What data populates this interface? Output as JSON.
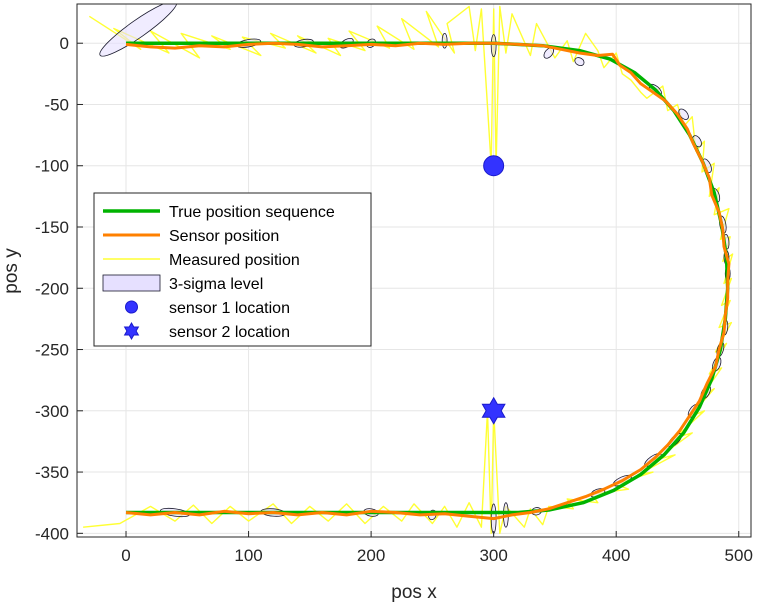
{
  "chart_data": {
    "type": "scatter",
    "xlabel": "pos x",
    "ylabel": "pos y",
    "xlim": [
      -40,
      510
    ],
    "ylim": [
      -403,
      32
    ],
    "grid": true,
    "legend_position": "left-middle",
    "x_ticks": [
      0,
      100,
      200,
      300,
      400,
      500
    ],
    "x_tick_labels": [
      "0",
      "100",
      "200",
      "300",
      "400",
      "500"
    ],
    "y_ticks": [
      0,
      -50,
      -100,
      -150,
      -200,
      -250,
      -300,
      -350,
      -400
    ],
    "y_tick_labels": [
      "0",
      "-50",
      "-100",
      "-150",
      "-200",
      "-250",
      "-300",
      "-350",
      "-400"
    ],
    "colors": {
      "true_position": "#00b300",
      "sensor_position": "#ff8000",
      "measured_position": "#ffff33",
      "sigma_fill": "#e6e0ff",
      "sigma_edge": "#1a1a2e",
      "sensor_marker": "#3333ff",
      "grid": "#e6e6e6",
      "axes": "#262626"
    },
    "series": [
      {
        "name": "True position sequence",
        "kind": "line",
        "points": [
          [
            0,
            0
          ],
          [
            100,
            0
          ],
          [
            200,
            0
          ],
          [
            300,
            0
          ],
          [
            340,
            -2
          ],
          [
            370,
            -6
          ],
          [
            395,
            -13
          ],
          [
            415,
            -24
          ],
          [
            432,
            -38
          ],
          [
            447,
            -55
          ],
          [
            460,
            -75
          ],
          [
            471,
            -98
          ],
          [
            480,
            -122
          ],
          [
            486,
            -148
          ],
          [
            490,
            -175
          ],
          [
            491,
            -200
          ],
          [
            489,
            -225
          ],
          [
            485,
            -250
          ],
          [
            478,
            -274
          ],
          [
            468,
            -297
          ],
          [
            455,
            -318
          ],
          [
            439,
            -336
          ],
          [
            420,
            -352
          ],
          [
            398,
            -365
          ],
          [
            373,
            -375
          ],
          [
            345,
            -381
          ],
          [
            320,
            -383
          ],
          [
            300,
            -383
          ],
          [
            200,
            -383
          ],
          [
            100,
            -383
          ],
          [
            0,
            -383
          ]
        ]
      },
      {
        "name": "Sensor position",
        "kind": "line",
        "points": [
          [
            0,
            -1
          ],
          [
            20,
            -3
          ],
          [
            40,
            -4
          ],
          [
            60,
            -2
          ],
          [
            80,
            -3
          ],
          [
            100,
            -1
          ],
          [
            120,
            0
          ],
          [
            140,
            -1
          ],
          [
            160,
            -3
          ],
          [
            180,
            -2
          ],
          [
            200,
            -1
          ],
          [
            220,
            -2
          ],
          [
            240,
            0
          ],
          [
            260,
            -1
          ],
          [
            280,
            0
          ],
          [
            300,
            0
          ],
          [
            320,
            -1
          ],
          [
            340,
            -2
          ],
          [
            355,
            -5
          ],
          [
            370,
            -8
          ],
          [
            385,
            -10
          ],
          [
            397,
            -9
          ],
          [
            403,
            -18
          ],
          [
            412,
            -24
          ],
          [
            420,
            -33
          ],
          [
            430,
            -40
          ],
          [
            440,
            -47
          ],
          [
            450,
            -58
          ],
          [
            458,
            -70
          ],
          [
            463,
            -82
          ],
          [
            470,
            -96
          ],
          [
            476,
            -110
          ],
          [
            478,
            -124
          ],
          [
            484,
            -138
          ],
          [
            487,
            -152
          ],
          [
            488,
            -166
          ],
          [
            492,
            -180
          ],
          [
            491,
            -194
          ],
          [
            491,
            -208
          ],
          [
            489,
            -222
          ],
          [
            488,
            -236
          ],
          [
            484,
            -250
          ],
          [
            481,
            -264
          ],
          [
            474,
            -278
          ],
          [
            468,
            -292
          ],
          [
            460,
            -304
          ],
          [
            452,
            -316
          ],
          [
            442,
            -328
          ],
          [
            432,
            -338
          ],
          [
            420,
            -348
          ],
          [
            405,
            -357
          ],
          [
            390,
            -364
          ],
          [
            375,
            -370
          ],
          [
            360,
            -375
          ],
          [
            345,
            -380
          ],
          [
            330,
            -383
          ],
          [
            315,
            -385
          ],
          [
            300,
            -388
          ],
          [
            280,
            -386
          ],
          [
            260,
            -384
          ],
          [
            240,
            -385
          ],
          [
            220,
            -383
          ],
          [
            200,
            -382
          ],
          [
            180,
            -385
          ],
          [
            160,
            -383
          ],
          [
            140,
            -385
          ],
          [
            120,
            -383
          ],
          [
            100,
            -384
          ],
          [
            80,
            -382
          ],
          [
            60,
            -385
          ],
          [
            40,
            -383
          ],
          [
            20,
            -385
          ],
          [
            0,
            -383
          ]
        ]
      },
      {
        "name": "Measured position",
        "kind": "line"
      },
      {
        "name": "3-sigma level",
        "kind": "ellipses",
        "ellipses": [
          {
            "cx": 10,
            "cy": 12,
            "rx": 38,
            "ry": 7,
            "angle": -35
          },
          {
            "cx": 100,
            "cy": 0,
            "rx": 10,
            "ry": 3,
            "angle": -10
          },
          {
            "cx": 145,
            "cy": 0,
            "rx": 8,
            "ry": 3,
            "angle": -10
          },
          {
            "cx": 180,
            "cy": 0,
            "rx": 6,
            "ry": 3,
            "angle": -30
          },
          {
            "cx": 200,
            "cy": 0,
            "rx": 4,
            "ry": 3,
            "angle": -40
          },
          {
            "cx": 260,
            "cy": 2,
            "rx": 2,
            "ry": 6,
            "angle": 0
          },
          {
            "cx": 300,
            "cy": -2,
            "rx": 2,
            "ry": 9,
            "angle": 0
          },
          {
            "cx": 345,
            "cy": -8,
            "rx": 3,
            "ry": 5,
            "angle": 40
          },
          {
            "cx": 370,
            "cy": -15,
            "rx": 4,
            "ry": 3,
            "angle": 30
          },
          {
            "cx": 432,
            "cy": -38,
            "rx": 6,
            "ry": 3,
            "angle": 40
          },
          {
            "cx": 455,
            "cy": -58,
            "rx": 5,
            "ry": 3,
            "angle": 50
          },
          {
            "cx": 466,
            "cy": -80,
            "rx": 5,
            "ry": 3,
            "angle": 60
          },
          {
            "cx": 474,
            "cy": -100,
            "rx": 6,
            "ry": 3,
            "angle": 65
          },
          {
            "cx": 481,
            "cy": -124,
            "rx": 6,
            "ry": 3,
            "angle": 70
          },
          {
            "cx": 487,
            "cy": -148,
            "rx": 7,
            "ry": 2.5,
            "angle": 80
          },
          {
            "cx": 490,
            "cy": -162,
            "rx": 6,
            "ry": 2,
            "angle": 85
          },
          {
            "cx": 490,
            "cy": -175,
            "rx": 6,
            "ry": 2,
            "angle": 88
          },
          {
            "cx": 491,
            "cy": -188,
            "rx": 6,
            "ry": 2,
            "angle": 90
          },
          {
            "cx": 489,
            "cy": -232,
            "rx": 6,
            "ry": 2,
            "angle": 95
          },
          {
            "cx": 485,
            "cy": -250,
            "rx": 6,
            "ry": 2.5,
            "angle": 105
          },
          {
            "cx": 482,
            "cy": -262,
            "rx": 6,
            "ry": 3,
            "angle": 110
          },
          {
            "cx": 473,
            "cy": -285,
            "rx": 6,
            "ry": 3,
            "angle": 120
          },
          {
            "cx": 463,
            "cy": -300,
            "rx": 6,
            "ry": 3,
            "angle": 125
          },
          {
            "cx": 448,
            "cy": -324,
            "rx": 7,
            "ry": 3,
            "angle": 135
          },
          {
            "cx": 430,
            "cy": -340,
            "rx": 8,
            "ry": 3,
            "angle": 145
          },
          {
            "cx": 405,
            "cy": -357,
            "rx": 8,
            "ry": 3,
            "angle": 155
          },
          {
            "cx": 385,
            "cy": -367,
            "rx": 6,
            "ry": 3,
            "angle": 160
          },
          {
            "cx": 335,
            "cy": -382,
            "rx": 4,
            "ry": 3,
            "angle": 170
          },
          {
            "cx": 310,
            "cy": -385,
            "rx": 2,
            "ry": 10,
            "angle": 0
          },
          {
            "cx": 300,
            "cy": -388,
            "rx": 2,
            "ry": 12,
            "angle": 0
          },
          {
            "cx": 250,
            "cy": -385,
            "rx": 3,
            "ry": 4,
            "angle": 20
          },
          {
            "cx": 200,
            "cy": -383,
            "rx": 6,
            "ry": 3,
            "angle": 10
          },
          {
            "cx": 120,
            "cy": -383,
            "rx": 10,
            "ry": 3,
            "angle": 5
          },
          {
            "cx": 40,
            "cy": -383,
            "rx": 12,
            "ry": 3,
            "angle": 8
          }
        ]
      },
      {
        "name": "sensor 1 location",
        "kind": "marker",
        "marker": "circle",
        "x": 300,
        "y": -100
      },
      {
        "name": "sensor 2 location",
        "kind": "marker",
        "marker": "hexagram",
        "x": 300,
        "y": -300
      }
    ],
    "measured_position_points": [
      [
        -30,
        22
      ],
      [
        12,
        -5
      ],
      [
        -10,
        12
      ],
      [
        35,
        -8
      ],
      [
        20,
        10
      ],
      [
        60,
        -12
      ],
      [
        45,
        8
      ],
      [
        85,
        -5
      ],
      [
        70,
        6
      ],
      [
        110,
        -10
      ],
      [
        95,
        5
      ],
      [
        130,
        -4
      ],
      [
        118,
        8
      ],
      [
        155,
        -8
      ],
      [
        140,
        6
      ],
      [
        175,
        -10
      ],
      [
        165,
        4
      ],
      [
        195,
        -6
      ],
      [
        182,
        10
      ],
      [
        215,
        -4
      ],
      [
        205,
        14
      ],
      [
        235,
        -5
      ],
      [
        225,
        20
      ],
      [
        255,
        -3
      ],
      [
        245,
        26
      ],
      [
        268,
        -8
      ],
      [
        262,
        16
      ],
      [
        280,
        30
      ],
      [
        285,
        -6
      ],
      [
        290,
        28
      ],
      [
        298,
        -100
      ],
      [
        300,
        28
      ],
      [
        302,
        -100
      ],
      [
        305,
        30
      ],
      [
        310,
        -8
      ],
      [
        315,
        24
      ],
      [
        330,
        -10
      ],
      [
        335,
        16
      ],
      [
        350,
        -12
      ],
      [
        360,
        2
      ],
      [
        365,
        -15
      ],
      [
        375,
        8
      ],
      [
        385,
        -6
      ],
      [
        390,
        -20
      ],
      [
        400,
        -8
      ],
      [
        405,
        -25
      ],
      [
        412,
        -30
      ],
      [
        420,
        -40
      ],
      [
        425,
        -45
      ],
      [
        438,
        -35
      ],
      [
        442,
        -55
      ],
      [
        450,
        -50
      ],
      [
        455,
        -68
      ],
      [
        462,
        -60
      ],
      [
        465,
        -88
      ],
      [
        472,
        -80
      ],
      [
        470,
        -105
      ],
      [
        480,
        -98
      ],
      [
        476,
        -125
      ],
      [
        484,
        -118
      ],
      [
        480,
        -140
      ],
      [
        492,
        -135
      ],
      [
        485,
        -160
      ],
      [
        493,
        -158
      ],
      [
        487,
        -178
      ],
      [
        495,
        -172
      ],
      [
        488,
        -196
      ],
      [
        494,
        -192
      ],
      [
        486,
        -214
      ],
      [
        493,
        -210
      ],
      [
        484,
        -232
      ],
      [
        494,
        -228
      ],
      [
        481,
        -252
      ],
      [
        490,
        -245
      ],
      [
        476,
        -270
      ],
      [
        486,
        -265
      ],
      [
        470,
        -288
      ],
      [
        480,
        -282
      ],
      [
        460,
        -305
      ],
      [
        472,
        -300
      ],
      [
        448,
        -322
      ],
      [
        462,
        -318
      ],
      [
        432,
        -340
      ],
      [
        448,
        -336
      ],
      [
        418,
        -352
      ],
      [
        430,
        -350
      ],
      [
        400,
        -360
      ],
      [
        410,
        -364
      ],
      [
        380,
        -368
      ],
      [
        385,
        -375
      ],
      [
        360,
        -372
      ],
      [
        365,
        -380
      ],
      [
        345,
        -378
      ],
      [
        340,
        -393
      ],
      [
        330,
        -380
      ],
      [
        325,
        -395
      ],
      [
        310,
        -378
      ],
      [
        305,
        -400
      ],
      [
        300,
        -300
      ],
      [
        298,
        -400
      ],
      [
        295,
        -300
      ],
      [
        290,
        -395
      ],
      [
        280,
        -375
      ],
      [
        270,
        -395
      ],
      [
        260,
        -378
      ],
      [
        250,
        -392
      ],
      [
        235,
        -376
      ],
      [
        225,
        -390
      ],
      [
        210,
        -378
      ],
      [
        195,
        -392
      ],
      [
        180,
        -376
      ],
      [
        165,
        -390
      ],
      [
        150,
        -378
      ],
      [
        135,
        -392
      ],
      [
        120,
        -376
      ],
      [
        100,
        -390
      ],
      [
        85,
        -378
      ],
      [
        70,
        -392
      ],
      [
        55,
        -377
      ],
      [
        40,
        -390
      ],
      [
        20,
        -378
      ],
      [
        -5,
        -392
      ],
      [
        -35,
        -395
      ]
    ]
  }
}
